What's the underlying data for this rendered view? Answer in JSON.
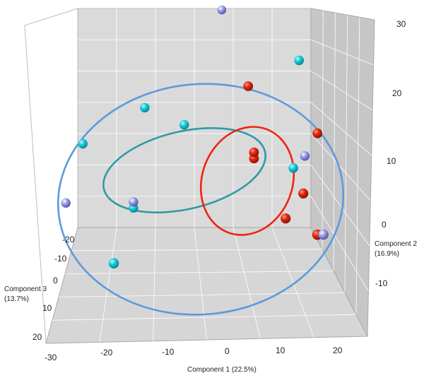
{
  "chart_data": {
    "type": "scatter",
    "projection": "3d",
    "axes": {
      "x": {
        "label": "Component 1",
        "variance": "(22.5%)",
        "ticks": [
          "-30",
          "-20",
          "-10",
          "0",
          "10",
          "20"
        ],
        "range": [
          -30,
          20
        ]
      },
      "y": {
        "label": "Component 2",
        "variance": "(16.9%)",
        "ticks": [
          "30",
          "20",
          "10",
          "0",
          "-10"
        ],
        "range": [
          -15,
          30
        ]
      },
      "z": {
        "label": "Component 3",
        "variance": "(13.7%)",
        "ticks": [
          "-20",
          "-10",
          "0",
          "10",
          "20"
        ],
        "range": [
          -20,
          20
        ]
      }
    },
    "grid": true,
    "legend": "none",
    "colors": {
      "red_group": "#d0200c",
      "cyan_group": "#12c6d4",
      "lavender_group": "#8f8fe6",
      "ellipse_red": "#ee2411",
      "ellipse_teal": "#2f9aa6",
      "ellipse_blue": "#5b9bdc"
    },
    "series": [
      {
        "color": "red",
        "points": [
          {
            "x": 3,
            "y": 20,
            "z": 5
          },
          {
            "x": 4,
            "y": 8,
            "z": 5
          },
          {
            "x": 4,
            "y": 9,
            "z": 5
          },
          {
            "x": 15,
            "y": 12,
            "z": 5
          },
          {
            "x": 12,
            "y": 3,
            "z": 8
          },
          {
            "x": 9,
            "y": -1,
            "z": 8
          },
          {
            "x": 14,
            "y": -3,
            "z": 10
          }
        ]
      },
      {
        "color": "cyan",
        "points": [
          {
            "x": -15,
            "y": 16,
            "z": 2
          },
          {
            "x": -8,
            "y": 13,
            "z": 2
          },
          {
            "x": -26,
            "y": 10,
            "z": 2
          },
          {
            "x": 12,
            "y": 24,
            "z": 4
          },
          {
            "x": 11,
            "y": 6,
            "z": 4
          },
          {
            "x": -17,
            "y": -1,
            "z": 2
          },
          {
            "x": -20,
            "y": -7,
            "z": 10
          }
        ]
      },
      {
        "color": "lavender",
        "points": [
          {
            "x": -1,
            "y": 32,
            "z": -2
          },
          {
            "x": 13,
            "y": 8,
            "z": 4
          },
          {
            "x": -29,
            "y": 0,
            "z": 2
          },
          {
            "x": -17,
            "y": 0,
            "z": 2
          },
          {
            "x": 15,
            "y": -3,
            "z": 10
          }
        ]
      }
    ],
    "ellipses": [
      {
        "color": "blue"
      },
      {
        "color": "teal"
      },
      {
        "color": "red"
      }
    ]
  }
}
